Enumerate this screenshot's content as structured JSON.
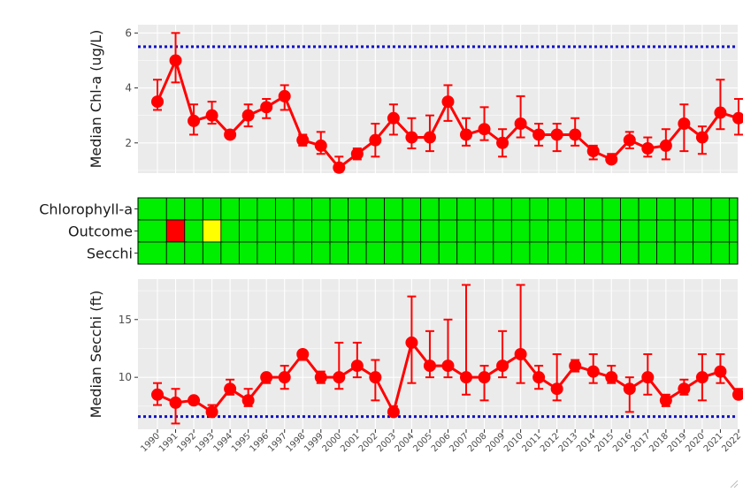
{
  "chart_data": [
    {
      "type": "line",
      "panel": "chlorophyll",
      "ylabel": "Median Chl-a (ug/L)",
      "ylim": [
        0.9,
        6.3
      ],
      "yticks": [
        2,
        4,
        6
      ],
      "x": [
        1990,
        1991,
        1992,
        1993,
        1994,
        1995,
        1996,
        1997,
        1998,
        1999,
        2000,
        2001,
        2002,
        2003,
        2004,
        2005,
        2006,
        2007,
        2008,
        2009,
        2010,
        2011,
        2012,
        2013,
        2014,
        2015,
        2016,
        2017,
        2018,
        2019,
        2020,
        2021,
        2022
      ],
      "values": [
        3.5,
        5.0,
        2.8,
        3.0,
        2.3,
        3.0,
        3.3,
        3.7,
        2.1,
        1.9,
        1.1,
        1.6,
        2.1,
        2.9,
        2.2,
        2.2,
        3.5,
        2.3,
        2.5,
        2.0,
        2.7,
        2.3,
        2.3,
        2.3,
        1.7,
        1.4,
        2.1,
        1.8,
        1.9,
        2.7,
        2.2,
        3.1,
        2.9
      ],
      "upper": [
        4.3,
        6.0,
        3.4,
        3.5,
        2.4,
        3.4,
        3.6,
        4.1,
        2.3,
        2.4,
        1.5,
        1.8,
        2.7,
        3.4,
        2.9,
        3.0,
        4.1,
        2.9,
        3.3,
        2.5,
        3.7,
        2.7,
        2.7,
        2.9,
        1.9,
        1.6,
        2.4,
        2.2,
        2.5,
        3.4,
        2.6,
        4.3,
        3.6
      ],
      "lower": [
        3.2,
        4.2,
        2.3,
        2.7,
        2.2,
        2.6,
        2.9,
        3.2,
        1.9,
        1.6,
        0.95,
        1.4,
        1.5,
        2.3,
        1.8,
        1.7,
        2.8,
        1.9,
        2.1,
        1.5,
        2.2,
        1.9,
        1.7,
        1.9,
        1.4,
        1.3,
        1.8,
        1.5,
        1.4,
        1.7,
        1.6,
        2.5,
        2.3
      ],
      "reference_line": 5.5,
      "series_color": "#ff0000",
      "reference_color": "#1010c8",
      "panel_background": "#ebebeb"
    },
    {
      "type": "heatmap",
      "panel": "outcome-grid",
      "rows": [
        "Chlorophyll-a",
        "Outcome",
        "Secchi"
      ],
      "columns": [
        1990,
        1991,
        1992,
        1993,
        1994,
        1995,
        1996,
        1997,
        1998,
        1999,
        2000,
        2001,
        2002,
        2003,
        2004,
        2005,
        2006,
        2007,
        2008,
        2009,
        2010,
        2011,
        2012,
        2013,
        2014,
        2015,
        2016,
        2017,
        2018,
        2019,
        2020,
        2021,
        2022
      ],
      "default_color": "#00ee00",
      "highlights": [
        {
          "row": "Outcome",
          "column": 1991,
          "color": "#ff0000"
        },
        {
          "row": "Outcome",
          "column": 1993,
          "color": "#ffff00"
        }
      ]
    },
    {
      "type": "line",
      "panel": "secchi",
      "ylabel": "Median Secchi (ft)",
      "ylim": [
        5.5,
        18.5
      ],
      "yticks": [
        10,
        15
      ],
      "x": [
        1990,
        1991,
        1992,
        1993,
        1994,
        1995,
        1996,
        1997,
        1998,
        1999,
        2000,
        2001,
        2002,
        2003,
        2004,
        2005,
        2006,
        2007,
        2008,
        2009,
        2010,
        2011,
        2012,
        2013,
        2014,
        2015,
        2016,
        2017,
        2018,
        2019,
        2020,
        2021,
        2022
      ],
      "values": [
        8.5,
        7.8,
        8.0,
        7.0,
        9.0,
        8.0,
        10.0,
        10.0,
        12.0,
        10.0,
        10.0,
        11.0,
        10.0,
        7.0,
        13.0,
        11.0,
        11.0,
        10.0,
        10.0,
        11.0,
        12.0,
        10.0,
        9.0,
        11.0,
        10.5,
        10.0,
        9.0,
        10.0,
        8.0,
        9.0,
        10.0,
        10.5,
        8.5
      ],
      "upper": [
        9.5,
        9.0,
        8.2,
        7.6,
        9.8,
        9.0,
        10.2,
        11.0,
        12.3,
        10.5,
        13.0,
        13.0,
        11.5,
        7.5,
        17.0,
        14.0,
        15.0,
        18.0,
        11.0,
        14.0,
        18.0,
        11.0,
        12.0,
        11.5,
        12.0,
        11.0,
        10.0,
        12.0,
        8.5,
        9.8,
        12.0,
        12.0,
        9.0
      ],
      "lower": [
        7.6,
        6.0,
        7.7,
        6.7,
        8.5,
        7.5,
        9.5,
        9.0,
        11.5,
        9.5,
        9.0,
        10.0,
        8.0,
        6.8,
        9.5,
        10.0,
        10.0,
        8.5,
        8.0,
        10.0,
        9.5,
        9.0,
        8.0,
        10.5,
        9.5,
        9.5,
        7.0,
        8.5,
        7.5,
        8.5,
        8.0,
        9.5,
        8.2
      ],
      "reference_line": 6.6,
      "series_color": "#ff0000",
      "reference_color": "#1010c8",
      "panel_background": "#ebebeb"
    }
  ]
}
